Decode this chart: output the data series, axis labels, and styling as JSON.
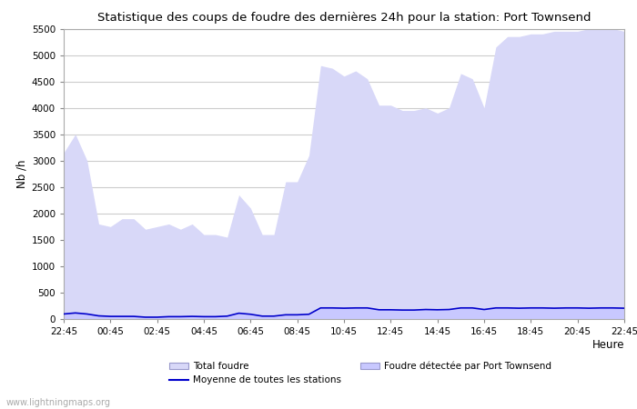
{
  "title": "Statistique des coups de foudre des dernières 24h pour la station: Port Townsend",
  "xlabel": "Heure",
  "ylabel": "Nb /h",
  "ylim": [
    0,
    5500
  ],
  "yticks": [
    0,
    500,
    1000,
    1500,
    2000,
    2500,
    3000,
    3500,
    4000,
    4500,
    5000,
    5500
  ],
  "xtick_labels": [
    "22:45",
    "00:45",
    "02:45",
    "04:45",
    "06:45",
    "08:45",
    "10:45",
    "12:45",
    "14:45",
    "16:45",
    "18:45",
    "20:45",
    "22:45"
  ],
  "bg_color": "#ffffff",
  "grid_color": "#cccccc",
  "total_foudre_color": "#d8d8f8",
  "foudre_detectee_color": "#c8c8ff",
  "moyenne_color": "#0000cc",
  "watermark": "www.lightningmaps.org",
  "total_foudre": [
    3150,
    3500,
    3000,
    1800,
    1750,
    1900,
    1900,
    1700,
    1750,
    1800,
    1700,
    1800,
    1600,
    1600,
    1550,
    2350,
    2100,
    1600,
    1600,
    2600,
    2600,
    3100,
    4800,
    4750,
    4600,
    4700,
    4550,
    4050,
    4050,
    3950,
    3950,
    4000,
    3900,
    4000,
    4650,
    4550,
    4000,
    5150,
    5350,
    5350,
    5400,
    5400,
    5450,
    5450,
    5450,
    5500,
    5500,
    5500,
    5450
  ],
  "foudre_detectee": [
    80,
    110,
    100,
    60,
    50,
    50,
    50,
    30,
    30,
    40,
    40,
    45,
    40,
    40,
    50,
    100,
    80,
    45,
    45,
    70,
    70,
    80,
    200,
    200,
    195,
    200,
    200,
    170,
    170,
    165,
    165,
    175,
    170,
    175,
    200,
    200,
    175,
    200,
    200,
    195,
    200,
    200,
    195,
    200,
    200,
    195,
    200,
    200,
    195
  ],
  "moyenne": [
    95,
    115,
    95,
    60,
    50,
    50,
    50,
    35,
    35,
    45,
    45,
    50,
    45,
    45,
    55,
    110,
    90,
    55,
    55,
    80,
    80,
    90,
    210,
    210,
    205,
    210,
    210,
    175,
    175,
    170,
    170,
    180,
    175,
    180,
    210,
    210,
    180,
    210,
    210,
    205,
    210,
    210,
    205,
    210,
    210,
    205,
    210,
    210,
    205
  ],
  "legend_total": "Total foudre",
  "legend_moyenne": "Moyenne de toutes les stations",
  "legend_detectee": "Foudre détectée par Port Townsend"
}
